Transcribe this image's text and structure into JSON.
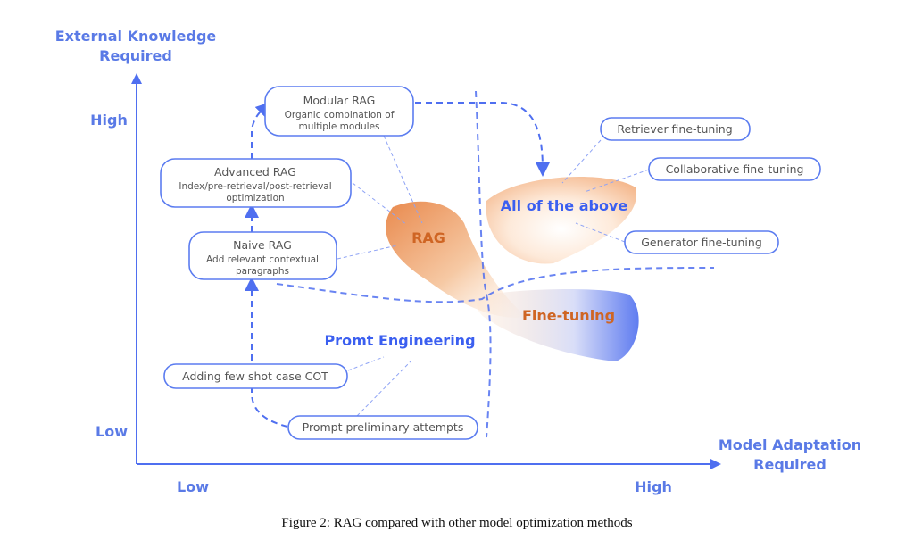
{
  "y_axis": {
    "title_line1": "External Knowledge",
    "title_line2": "Required",
    "high": "High",
    "low": "Low"
  },
  "x_axis": {
    "title_line1": "Model Adaptation",
    "title_line2": "Required",
    "low": "Low",
    "high": "High"
  },
  "boxes": {
    "modular": {
      "title": "Modular RAG",
      "line1": "Organic combination of",
      "line2": "multiple modules"
    },
    "advanced": {
      "title": "Advanced RAG",
      "line1": "Index/pre-retrieval/post-retrieval",
      "line2": "optimization"
    },
    "naive": {
      "title": "Naive RAG",
      "line1": "Add relevant contextual",
      "line2": "paragraphs"
    },
    "few_shot": "Adding few shot case COT",
    "preliminary": "Prompt preliminary attempts",
    "retriever": "Retriever fine-tuning",
    "collaborative": "Collaborative fine-tuning",
    "generator": "Generator fine-tuning"
  },
  "regions": {
    "rag": "RAG",
    "all": "All of the above",
    "fine_tuning": "Fine-tuning",
    "prompt": "Promt Engineering"
  },
  "colors": {
    "accent_blue": "#4f6ff0",
    "accent_orange": "#cf6524"
  },
  "caption": "Figure 2: RAG compared with other model optimization methods"
}
